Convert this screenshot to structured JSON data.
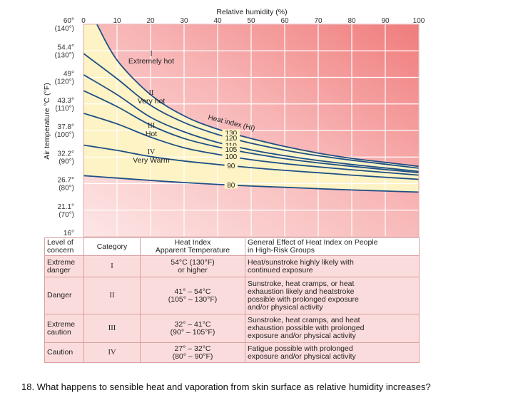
{
  "chart_data": {
    "type": "line",
    "title": "Relative humidity (%)",
    "xlabel": "Relative humidity (%)",
    "ylabel": "Air temperature °C (°F)",
    "x_ticks": [
      0,
      10,
      20,
      30,
      40,
      50,
      60,
      70,
      80,
      90,
      100
    ],
    "xlim": [
      0,
      100
    ],
    "ylim": [
      60,
      140
    ],
    "y_ticks": [
      {
        "f": 140,
        "c_label": "60°",
        "f_label": "(140°)"
      },
      {
        "f": 130,
        "c_label": "54.4°",
        "f_label": "(130°)"
      },
      {
        "f": 120,
        "c_label": "49°",
        "f_label": "(120°)"
      },
      {
        "f": 110,
        "c_label": "43.3°",
        "f_label": "(110°)"
      },
      {
        "f": 100,
        "c_label": "37.8°",
        "f_label": "(100°)"
      },
      {
        "f": 90,
        "c_label": "32.2°",
        "f_label": "(90°)"
      },
      {
        "f": 80,
        "c_label": "26.7°",
        "f_label": "(80°)"
      },
      {
        "f": 70,
        "c_label": "21.1°",
        "f_label": "(70°)"
      },
      {
        "f": 60,
        "c_label": "16°",
        "f_label": "(60°)"
      }
    ],
    "series_title": "Heat index (HI)",
    "series": [
      {
        "name": "130",
        "x": [
          4,
          10,
          20,
          30,
          40,
          50,
          60,
          70,
          80,
          90,
          100
        ],
        "y": [
          140,
          126.5,
          113.5,
          105.5,
          100.5,
          97,
          94,
          91.5,
          89.5,
          88,
          86.5
        ]
      },
      {
        "name": "120",
        "x": [
          0,
          10,
          20,
          30,
          40,
          50,
          60,
          70,
          80,
          90,
          100
        ],
        "y": [
          129,
          119.5,
          109.5,
          103,
          98.5,
          95.2,
          92.6,
          90.5,
          88.8,
          87.3,
          85.8
        ]
      },
      {
        "name": "110",
        "x": [
          0,
          10,
          20,
          30,
          40,
          50,
          60,
          70,
          80,
          90,
          100
        ],
        "y": [
          121,
          113.5,
          105,
          99.5,
          95.5,
          92.7,
          90.5,
          88.7,
          87.2,
          85.9,
          84.6
        ]
      },
      {
        "name": "105",
        "x": [
          0,
          10,
          20,
          30,
          40,
          50,
          60,
          70,
          80,
          90,
          100
        ],
        "y": [
          115,
          109,
          102,
          97,
          93.8,
          91.4,
          89.4,
          87.8,
          86.5,
          85.3,
          84.1
        ]
      },
      {
        "name": "100",
        "x": [
          0,
          10,
          20,
          30,
          40,
          50,
          60,
          70,
          80,
          90,
          100
        ],
        "y": [
          106.5,
          102.5,
          97.5,
          93.5,
          91,
          89,
          87.5,
          86.3,
          85.2,
          84.2,
          83.2
        ]
      },
      {
        "name": "90",
        "x": [
          0,
          10,
          20,
          30,
          40,
          50,
          60,
          70,
          80,
          90,
          100
        ],
        "y": [
          94.5,
          92.5,
          90.2,
          88.5,
          87.2,
          86,
          85,
          84.1,
          83.2,
          82.4,
          81.6
        ]
      },
      {
        "name": "80",
        "x": [
          0,
          10,
          20,
          30,
          40,
          50,
          60,
          70,
          80,
          90,
          100
        ],
        "y": [
          83,
          82.1,
          81.2,
          80.4,
          79.7,
          79.1,
          78.6,
          78.1,
          77.6,
          77.2,
          76.8
        ]
      }
    ],
    "zones": [
      {
        "numeral": "I",
        "label": "Extremely hot"
      },
      {
        "numeral": "II",
        "label": "Very hot"
      },
      {
        "numeral": "III",
        "label": "Hot"
      },
      {
        "numeral": "IV",
        "label": "Very Warm"
      }
    ]
  },
  "table": {
    "headers": {
      "level": [
        "Level of",
        "concern"
      ],
      "category": "Category",
      "heat_index": [
        "Heat Index",
        "Apparent Temperature"
      ],
      "effect": [
        "General Effect of Heat Index on People",
        "in High-Risk Groups"
      ]
    },
    "rows": [
      {
        "level": [
          "Extreme",
          "danger"
        ],
        "category": "I",
        "heat_index": [
          "54°C (130°F)",
          "or higher"
        ],
        "effect": [
          "Heat/sunstroke highly likely with",
          "continued exposure"
        ]
      },
      {
        "level": [
          "Danger"
        ],
        "category": "II",
        "heat_index": [
          "41° – 54°C",
          "(105° – 130°F)"
        ],
        "effect": [
          "Sunstroke, heat cramps, or heat",
          "exhaustion likely and heatstroke",
          "possible with prolonged exposure",
          "and/or physical activity"
        ]
      },
      {
        "level": [
          "Extreme",
          "caution"
        ],
        "category": "III",
        "heat_index": [
          "32° – 41°C",
          "(90° – 105°F)"
        ],
        "effect": [
          "Sunstroke, heat cramps, and heat",
          "exhaustion possible with prolonged",
          "exposure and/or physical activity"
        ]
      },
      {
        "level": [
          "Caution"
        ],
        "category": "IV",
        "heat_index": [
          "27° – 32°C",
          "(80° – 90°F)"
        ],
        "effect": [
          "Fatigue possible with prolonged",
          "exposure and/or physical activity"
        ]
      }
    ]
  },
  "question": "18. What happens to sensible heat and vaporation from skin surface as relative humidity increases?"
}
